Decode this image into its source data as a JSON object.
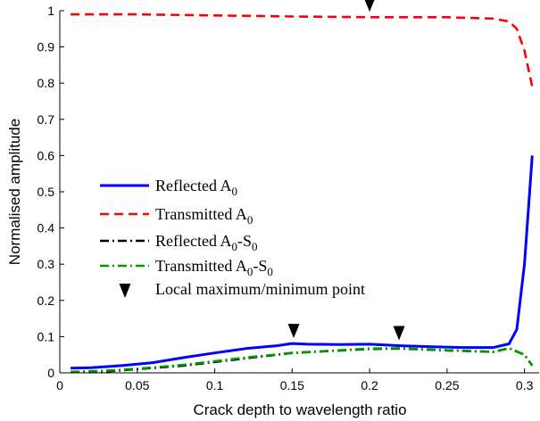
{
  "chart_data": {
    "type": "line",
    "title": "",
    "xlabel": "Crack depth to wavelength ratio",
    "ylabel": "Normalised amplitude",
    "xlim": [
      0,
      0.31
    ],
    "ylim": [
      0,
      1
    ],
    "xticks": [
      "0",
      "0.05",
      "0.1",
      "0.15",
      "0.2",
      "0.25",
      "0.3"
    ],
    "yticks": [
      "0",
      "0.1",
      "0.2",
      "0.3",
      "0.4",
      "0.5",
      "0.6",
      "0.7",
      "0.8",
      "0.9",
      "1"
    ],
    "grid": false,
    "legend_position": "center-left",
    "series": [
      {
        "name": "Reflected A",
        "sub": "0",
        "color": "#0000ff",
        "dash": "solid",
        "x": [
          0.007,
          0.02,
          0.04,
          0.06,
          0.08,
          0.1,
          0.12,
          0.14,
          0.15,
          0.16,
          0.18,
          0.2,
          0.22,
          0.24,
          0.26,
          0.28,
          0.29,
          0.295,
          0.3,
          0.305
        ],
        "y": [
          0.013,
          0.014,
          0.02,
          0.028,
          0.042,
          0.055,
          0.067,
          0.075,
          0.081,
          0.079,
          0.078,
          0.079,
          0.075,
          0.072,
          0.07,
          0.07,
          0.08,
          0.12,
          0.3,
          0.6
        ]
      },
      {
        "name": "Transmitted A",
        "sub": "0",
        "color": "#ff0000",
        "dash": "dashed",
        "x": [
          0.007,
          0.05,
          0.1,
          0.15,
          0.2,
          0.25,
          0.28,
          0.29,
          0.295,
          0.3,
          0.305
        ],
        "y": [
          0.99,
          0.99,
          0.987,
          0.984,
          0.982,
          0.982,
          0.978,
          0.97,
          0.95,
          0.89,
          0.79
        ]
      },
      {
        "name": "Reflected A",
        "sub": "0",
        "suffix": "-S",
        "sub2": "0",
        "color": "#000000",
        "dash": "dashdot",
        "x": [
          0.007,
          0.03,
          0.05,
          0.08,
          0.1,
          0.15,
          0.2,
          0.22,
          0.25,
          0.28,
          0.29,
          0.3,
          0.305
        ],
        "y": [
          0.002,
          0.004,
          0.01,
          0.02,
          0.03,
          0.055,
          0.066,
          0.067,
          0.062,
          0.058,
          0.068,
          0.05,
          0.02
        ]
      },
      {
        "name": "Transmitted A",
        "sub": "0",
        "suffix": "-S",
        "sub2": "0",
        "color": "#009900",
        "dash": "dashdot",
        "x": [
          0.007,
          0.03,
          0.05,
          0.08,
          0.1,
          0.12,
          0.15,
          0.18,
          0.2,
          0.22,
          0.25,
          0.28,
          0.29,
          0.3,
          0.305
        ],
        "y": [
          0.003,
          0.006,
          0.011,
          0.022,
          0.032,
          0.042,
          0.055,
          0.062,
          0.067,
          0.068,
          0.062,
          0.058,
          0.068,
          0.05,
          0.02
        ]
      }
    ],
    "markers": {
      "label": "Local maximum/minimum point",
      "points": [
        {
          "x": 0.2,
          "y": 0.982
        },
        {
          "x": 0.151,
          "y": 0.081
        },
        {
          "x": 0.219,
          "y": 0.075
        }
      ]
    }
  }
}
